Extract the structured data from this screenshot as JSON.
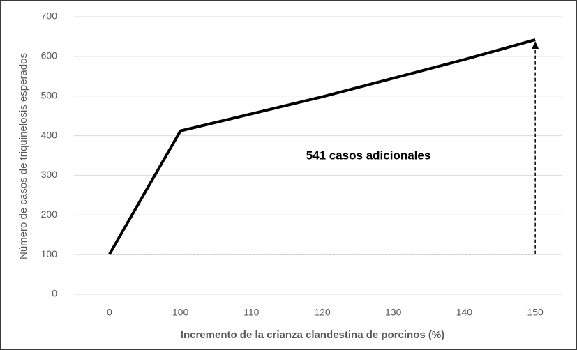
{
  "chart_data": {
    "type": "line",
    "x_label": "Incremento de la crianza clandestina de porcinos (%)",
    "y_label": "Número de casos de triquinelosis esperados",
    "annotation": "541 casos adicionales",
    "categories": [
      "0",
      "100",
      "110",
      "120",
      "130",
      "140",
      "150"
    ],
    "values": [
      101,
      412,
      455,
      498,
      545,
      592,
      642
    ],
    "color": "#000000",
    "ylim": [
      0,
      700
    ],
    "yticks": [
      0,
      100,
      200,
      300,
      400,
      500,
      600,
      700
    ],
    "grid": true
  }
}
